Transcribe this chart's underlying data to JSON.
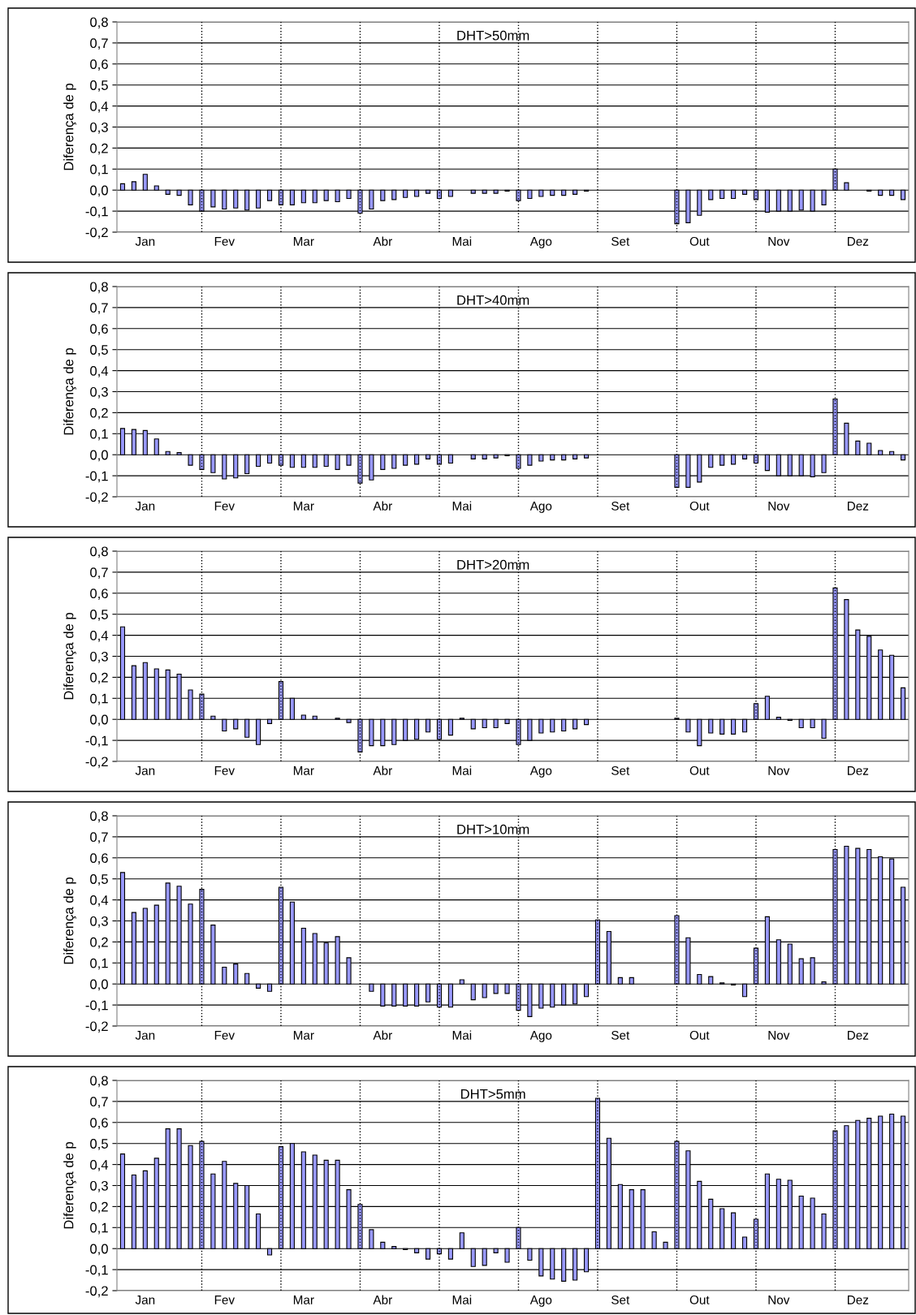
{
  "chart_data": [
    {
      "type": "bar",
      "title": "DHT>50mm",
      "ylabel": "Diferença de p",
      "color": "#9999ff",
      "grid": true,
      "categories": [
        null,
        null,
        "Jan",
        null,
        null,
        null,
        null,
        null,
        null,
        "Fev",
        null,
        null,
        null,
        null,
        null,
        null,
        "Mar",
        null,
        null,
        null,
        null,
        null,
        null,
        "Abr",
        null,
        null,
        null,
        null,
        null,
        null,
        "Mai",
        null,
        null,
        null,
        null,
        null,
        null,
        "Ago",
        null,
        null,
        null,
        null,
        null,
        null,
        "Set",
        null,
        null,
        null,
        null,
        null,
        null,
        "Out",
        null,
        null,
        null,
        null,
        null,
        null,
        "Nov",
        null,
        null,
        null,
        null,
        null,
        null,
        "Dez",
        null,
        null,
        null,
        null
      ],
      "values": [
        0.03,
        0.04,
        0.075,
        0.02,
        -0.02,
        -0.025,
        -0.07,
        -0.1,
        -0.08,
        -0.09,
        -0.085,
        -0.095,
        -0.085,
        -0.05,
        -0.07,
        -0.07,
        -0.06,
        -0.06,
        -0.05,
        -0.055,
        -0.04,
        -0.11,
        -0.09,
        -0.05,
        -0.045,
        -0.035,
        -0.03,
        -0.015,
        -0.04,
        -0.03,
        null,
        -0.015,
        -0.015,
        -0.015,
        -0.005,
        -0.05,
        -0.04,
        -0.03,
        -0.025,
        -0.025,
        -0.02,
        -0.005,
        null,
        null,
        null,
        null,
        null,
        null,
        null,
        -0.16,
        -0.155,
        -0.12,
        -0.045,
        -0.04,
        -0.04,
        -0.02,
        -0.045,
        -0.105,
        -0.1,
        -0.1,
        -0.095,
        -0.1,
        -0.07,
        0.1,
        0.035,
        null,
        -0.005,
        -0.025,
        -0.025,
        -0.045
      ],
      "ylim": [
        -0.2,
        0.8
      ],
      "yticks": [
        {
          "value": -0.2,
          "label": "-0,2"
        },
        {
          "value": -0.1,
          "label": "-0,1"
        },
        {
          "value": 0.0,
          "label": "0,0"
        },
        {
          "value": 0.1,
          "label": "0,1"
        },
        {
          "value": 0.2,
          "label": "0,2"
        },
        {
          "value": 0.3,
          "label": "0,3"
        },
        {
          "value": 0.4,
          "label": "0,4"
        },
        {
          "value": 0.5,
          "label": "0,5"
        },
        {
          "value": 0.6,
          "label": "0,6"
        },
        {
          "value": 0.7,
          "label": "0,7"
        },
        {
          "value": 0.8,
          "label": "0,8"
        }
      ]
    },
    {
      "type": "bar",
      "title": "DHT>40mm",
      "ylabel": "Diferença de p",
      "color": "#9999ff",
      "grid": true,
      "categories": [
        null,
        null,
        "Jan",
        null,
        null,
        null,
        null,
        null,
        null,
        "Fev",
        null,
        null,
        null,
        null,
        null,
        null,
        "Mar",
        null,
        null,
        null,
        null,
        null,
        null,
        "Abr",
        null,
        null,
        null,
        null,
        null,
        null,
        "Mai",
        null,
        null,
        null,
        null,
        null,
        null,
        "Ago",
        null,
        null,
        null,
        null,
        null,
        null,
        "Set",
        null,
        null,
        null,
        null,
        null,
        null,
        "Out",
        null,
        null,
        null,
        null,
        null,
        null,
        "Nov",
        null,
        null,
        null,
        null,
        null,
        null,
        "Dez",
        null,
        null,
        null,
        null
      ],
      "values": [
        0.125,
        0.12,
        0.115,
        0.075,
        0.015,
        0.01,
        -0.05,
        -0.07,
        -0.085,
        -0.115,
        -0.11,
        -0.09,
        -0.055,
        -0.04,
        -0.05,
        -0.06,
        -0.06,
        -0.06,
        -0.055,
        -0.07,
        -0.05,
        -0.135,
        -0.12,
        -0.07,
        -0.065,
        -0.05,
        -0.045,
        -0.02,
        -0.045,
        -0.04,
        null,
        -0.02,
        -0.02,
        -0.015,
        -0.005,
        -0.065,
        -0.05,
        -0.03,
        -0.025,
        -0.025,
        -0.02,
        -0.015,
        null,
        null,
        null,
        null,
        null,
        null,
        null,
        -0.155,
        -0.155,
        -0.13,
        -0.06,
        -0.05,
        -0.045,
        -0.02,
        -0.04,
        -0.075,
        -0.1,
        -0.1,
        -0.1,
        -0.105,
        -0.085,
        0.265,
        0.15,
        0.065,
        0.055,
        0.02,
        0.015,
        -0.025
      ],
      "ylim": [
        -0.2,
        0.8
      ],
      "yticks": [
        {
          "value": -0.2,
          "label": "-0,2"
        },
        {
          "value": -0.1,
          "label": "-0,1"
        },
        {
          "value": 0.0,
          "label": "0,0"
        },
        {
          "value": 0.1,
          "label": "0,1"
        },
        {
          "value": 0.2,
          "label": "0,2"
        },
        {
          "value": 0.3,
          "label": "0,3"
        },
        {
          "value": 0.4,
          "label": "0,4"
        },
        {
          "value": 0.5,
          "label": "0,5"
        },
        {
          "value": 0.6,
          "label": "0,6"
        },
        {
          "value": 0.7,
          "label": "0,7"
        },
        {
          "value": 0.8,
          "label": "0,8"
        }
      ]
    },
    {
      "type": "bar",
      "title": "DHT>20mm",
      "ylabel": "Diferença de p",
      "color": "#9999ff",
      "grid": true,
      "categories": [
        null,
        null,
        "Jan",
        null,
        null,
        null,
        null,
        null,
        null,
        "Fev",
        null,
        null,
        null,
        null,
        null,
        null,
        "Mar",
        null,
        null,
        null,
        null,
        null,
        null,
        "Abr",
        null,
        null,
        null,
        null,
        null,
        null,
        "Mai",
        null,
        null,
        null,
        null,
        null,
        null,
        "Ago",
        null,
        null,
        null,
        null,
        null,
        null,
        "Set",
        null,
        null,
        null,
        null,
        null,
        null,
        "Out",
        null,
        null,
        null,
        null,
        null,
        null,
        "Nov",
        null,
        null,
        null,
        null,
        null,
        null,
        "Dez",
        null,
        null,
        null,
        null
      ],
      "values": [
        0.44,
        0.255,
        0.27,
        0.24,
        0.235,
        0.215,
        0.14,
        0.12,
        0.015,
        -0.055,
        -0.045,
        -0.085,
        -0.12,
        -0.02,
        0.18,
        0.1,
        0.02,
        0.015,
        null,
        0.005,
        -0.015,
        -0.155,
        -0.125,
        -0.125,
        -0.12,
        -0.1,
        -0.095,
        -0.06,
        -0.095,
        -0.075,
        0.005,
        -0.045,
        -0.04,
        -0.04,
        -0.02,
        -0.12,
        -0.1,
        -0.065,
        -0.06,
        -0.055,
        -0.045,
        -0.025,
        null,
        null,
        null,
        null,
        null,
        null,
        null,
        0.005,
        -0.06,
        -0.125,
        -0.065,
        -0.07,
        -0.07,
        -0.06,
        0.075,
        0.11,
        0.01,
        -0.005,
        -0.04,
        -0.04,
        -0.09,
        0.625,
        0.57,
        0.425,
        0.395,
        0.33,
        0.305,
        0.15
      ],
      "ylim": [
        -0.2,
        0.8
      ],
      "yticks": [
        {
          "value": -0.2,
          "label": "-0,2"
        },
        {
          "value": -0.1,
          "label": "-0,1"
        },
        {
          "value": 0.0,
          "label": "0,0"
        },
        {
          "value": 0.1,
          "label": "0,1"
        },
        {
          "value": 0.2,
          "label": "0,2"
        },
        {
          "value": 0.3,
          "label": "0,3"
        },
        {
          "value": 0.4,
          "label": "0,4"
        },
        {
          "value": 0.5,
          "label": "0,5"
        },
        {
          "value": 0.6,
          "label": "0,6"
        },
        {
          "value": 0.7,
          "label": "0,7"
        },
        {
          "value": 0.8,
          "label": "0,8"
        }
      ]
    },
    {
      "type": "bar",
      "title": "DHT>10mm",
      "ylabel": "Diferença de p",
      "color": "#9999ff",
      "grid": true,
      "categories": [
        null,
        null,
        "Jan",
        null,
        null,
        null,
        null,
        null,
        null,
        "Fev",
        null,
        null,
        null,
        null,
        null,
        null,
        "Mar",
        null,
        null,
        null,
        null,
        null,
        null,
        "Abr",
        null,
        null,
        null,
        null,
        null,
        null,
        "Mai",
        null,
        null,
        null,
        null,
        null,
        null,
        "Ago",
        null,
        null,
        null,
        null,
        null,
        null,
        "Set",
        null,
        null,
        null,
        null,
        null,
        null,
        "Out",
        null,
        null,
        null,
        null,
        null,
        null,
        "Nov",
        null,
        null,
        null,
        null,
        null,
        null,
        "Dez",
        null,
        null,
        null,
        null
      ],
      "values": [
        0.53,
        0.34,
        0.36,
        0.375,
        0.48,
        0.465,
        0.38,
        0.45,
        0.28,
        0.08,
        0.095,
        0.05,
        -0.02,
        -0.035,
        0.46,
        0.39,
        0.265,
        0.24,
        0.195,
        0.225,
        0.125,
        null,
        -0.035,
        -0.105,
        -0.105,
        -0.105,
        -0.105,
        -0.085,
        -0.11,
        -0.11,
        0.02,
        -0.075,
        -0.065,
        -0.045,
        -0.045,
        -0.125,
        -0.155,
        -0.115,
        -0.11,
        -0.1,
        -0.095,
        -0.06,
        0.305,
        0.25,
        0.03,
        0.03,
        null,
        null,
        null,
        0.325,
        0.22,
        0.045,
        0.035,
        0.005,
        -0.005,
        -0.06,
        0.17,
        0.32,
        0.21,
        0.19,
        0.12,
        0.125,
        0.01,
        0.64,
        0.655,
        0.645,
        0.64,
        0.605,
        0.595,
        0.46
      ],
      "ylim": [
        -0.2,
        0.8
      ],
      "yticks": [
        {
          "value": -0.2,
          "label": "-0,2"
        },
        {
          "value": -0.1,
          "label": "-0,1"
        },
        {
          "value": 0.0,
          "label": "0,0"
        },
        {
          "value": 0.1,
          "label": "0,1"
        },
        {
          "value": 0.2,
          "label": "0,2"
        },
        {
          "value": 0.3,
          "label": "0,3"
        },
        {
          "value": 0.4,
          "label": "0,4"
        },
        {
          "value": 0.5,
          "label": "0,5"
        },
        {
          "value": 0.6,
          "label": "0,6"
        },
        {
          "value": 0.7,
          "label": "0,7"
        },
        {
          "value": 0.8,
          "label": "0,8"
        }
      ]
    },
    {
      "type": "bar",
      "title": "DHT>5mm",
      "ylabel": "Diferença de p",
      "color": "#9999ff",
      "grid": true,
      "categories": [
        null,
        null,
        "Jan",
        null,
        null,
        null,
        null,
        null,
        null,
        "Fev",
        null,
        null,
        null,
        null,
        null,
        null,
        "Mar",
        null,
        null,
        null,
        null,
        null,
        null,
        "Abr",
        null,
        null,
        null,
        null,
        null,
        null,
        "Mai",
        null,
        null,
        null,
        null,
        null,
        null,
        "Ago",
        null,
        null,
        null,
        null,
        null,
        null,
        "Set",
        null,
        null,
        null,
        null,
        null,
        null,
        "Out",
        null,
        null,
        null,
        null,
        null,
        null,
        "Nov",
        null,
        null,
        null,
        null,
        null,
        null,
        "Dez",
        null,
        null,
        null,
        null
      ],
      "values": [
        0.45,
        0.35,
        0.37,
        0.43,
        0.57,
        0.57,
        0.49,
        0.51,
        0.355,
        0.415,
        0.31,
        0.3,
        0.165,
        -0.03,
        0.485,
        0.5,
        0.46,
        0.445,
        0.42,
        0.42,
        0.28,
        0.21,
        0.09,
        0.03,
        0.01,
        -0.005,
        -0.02,
        -0.05,
        -0.025,
        -0.05,
        0.075,
        -0.085,
        -0.08,
        -0.02,
        -0.065,
        0.1,
        -0.055,
        -0.13,
        -0.145,
        -0.155,
        -0.15,
        -0.11,
        0.715,
        0.525,
        0.305,
        0.28,
        0.28,
        0.08,
        0.03,
        0.51,
        0.465,
        0.32,
        0.235,
        0.19,
        0.17,
        0.055,
        0.14,
        0.355,
        0.33,
        0.325,
        0.25,
        0.24,
        0.165,
        0.56,
        0.585,
        0.61,
        0.62,
        0.63,
        0.64,
        0.63
      ],
      "ylim": [
        -0.2,
        0.8
      ],
      "yticks": [
        {
          "value": -0.2,
          "label": "-0,2"
        },
        {
          "value": -0.1,
          "label": "-0,1"
        },
        {
          "value": 0.0,
          "label": "0,0"
        },
        {
          "value": 0.1,
          "label": "0,1"
        },
        {
          "value": 0.2,
          "label": "0,2"
        },
        {
          "value": 0.3,
          "label": "0,3"
        },
        {
          "value": 0.4,
          "label": "0,4"
        },
        {
          "value": 0.5,
          "label": "0,5"
        },
        {
          "value": 0.6,
          "label": "0,6"
        },
        {
          "value": 0.7,
          "label": "0,7"
        },
        {
          "value": 0.8,
          "label": "0,8"
        }
      ]
    }
  ]
}
